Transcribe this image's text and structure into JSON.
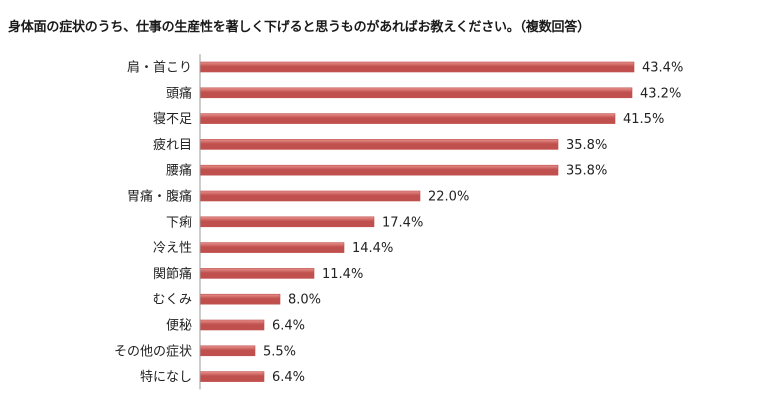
{
  "chart_data": {
    "type": "bar",
    "orientation": "horizontal",
    "title": "身体面の症状のうち、仕事の生産性を著しく下げると思うものがあればお教えください。（複数回答）",
    "categories": [
      "肩・首こり",
      "頭痛",
      "寝不足",
      "疲れ目",
      "腰痛",
      "胃痛・腹痛",
      "下痢",
      "冷え性",
      "関節痛",
      "むくみ",
      "便秘",
      "その他の症状",
      "特になし"
    ],
    "values": [
      43.4,
      43.2,
      41.5,
      35.8,
      35.8,
      22.0,
      17.4,
      14.4,
      11.4,
      8.0,
      6.4,
      5.5,
      6.4
    ],
    "value_labels": [
      "43.4%",
      "43.2%",
      "41.5%",
      "35.8%",
      "35.8%",
      "22.0%",
      "17.4%",
      "14.4%",
      "11.4%",
      "8.0%",
      "6.4%",
      "5.5%",
      "6.4%"
    ],
    "unit": "%",
    "xlabel": "",
    "ylabel": "",
    "xlim": [
      0,
      50
    ],
    "grid": false,
    "bar_color": "#c0504d",
    "bar_highlight_color": "#e8908c"
  }
}
